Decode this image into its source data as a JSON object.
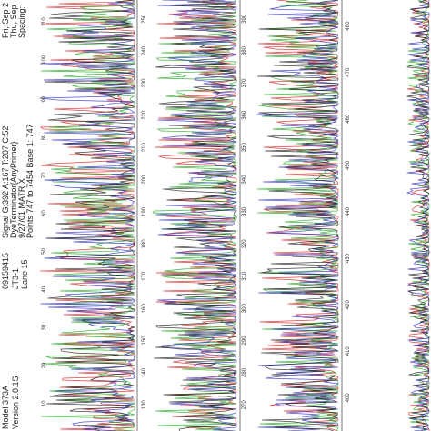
{
  "header": {
    "instrument": [
      "Model 373A",
      "Version 2.0.1S"
    ],
    "sample": [
      "09159415",
      "JT3-1",
      "Lane 15"
    ],
    "run": [
      "Signal G:392 A:167 T:207 C:52",
      "DyeTerminator{AnyPrimer}",
      "9/27/01 MATRIX",
      "Points 747 to 7454  Base 1: 747"
    ],
    "dates": [
      "Fri, Sep 2",
      "Thu, Sep",
      "Spacing:"
    ]
  },
  "columns": [
    {
      "positions": [
        "10",
        "20",
        "30",
        "40",
        "50",
        "60",
        "70",
        "80",
        "90",
        "100",
        "110"
      ]
    },
    {
      "positions": [
        "130",
        "140",
        "150",
        "160",
        "170",
        "180",
        "190",
        "200",
        "210",
        "220",
        "230",
        "240",
        "250"
      ]
    },
    {
      "positions": [
        "270",
        "280",
        "290",
        "300",
        "310",
        "320",
        "330",
        "340",
        "350",
        "360",
        "370",
        "380",
        "390"
      ]
    },
    {
      "positions": [
        "400",
        "410",
        "420",
        "430",
        "440",
        "450",
        "460",
        "470",
        "480"
      ]
    }
  ]
}
